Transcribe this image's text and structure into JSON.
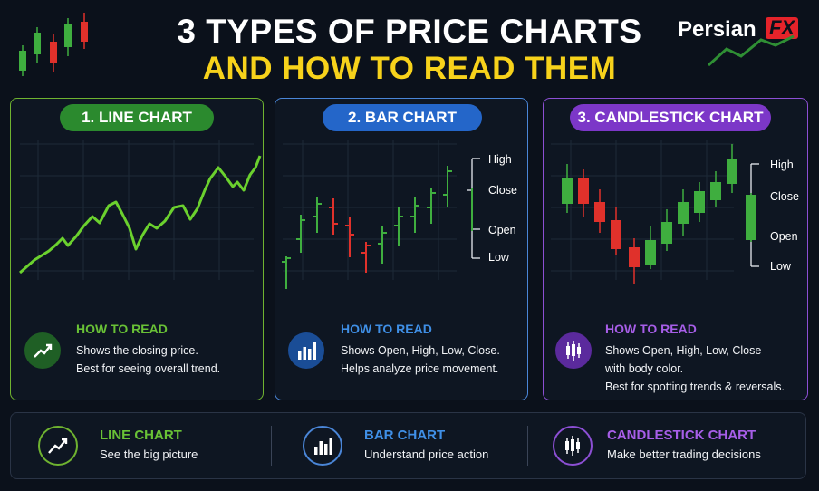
{
  "title": {
    "line1": "3 TYPES OF PRICE CHARTS",
    "line2": "AND HOW TO READ THEM"
  },
  "logo": {
    "text": "Persian",
    "accent": "FX"
  },
  "panels": [
    {
      "label": "1. LINE CHART",
      "how_to_read": "HOW TO READ",
      "description": [
        "Shows the closing price.",
        "Best for seeing overall trend."
      ],
      "accent": "#6fb330",
      "icon": "trend-up-icon"
    },
    {
      "label": "2. BAR CHART",
      "how_to_read": "HOW TO READ",
      "description": [
        "Shows Open, High, Low, Close.",
        "Helps analyze price movement."
      ],
      "accent": "#4a86d8",
      "icon": "bar-chart-icon",
      "legend": {
        "high": "High",
        "close": "Close",
        "open": "Open",
        "low": "Low"
      }
    },
    {
      "label": "3. CANDLESTICK CHART",
      "how_to_read": "HOW TO READ",
      "description": [
        "Shows Open, High, Low, Close",
        "with body color.",
        "Best for spotting trends & reversals."
      ],
      "accent": "#8c4fd4",
      "icon": "candlestick-icon",
      "legend": {
        "high": "High",
        "close": "Close",
        "open": "Open",
        "low": "Low"
      }
    }
  ],
  "bottom": [
    {
      "title": "LINE CHART",
      "subtitle": "See the big picture",
      "color": "#6fb330",
      "icon": "trend-up-icon"
    },
    {
      "title": "BAR CHART",
      "subtitle": "Understand price action",
      "color": "#4a86d8",
      "icon": "bar-chart-icon"
    },
    {
      "title": "CANDLESTICK CHART",
      "subtitle": "Make better trading decisions",
      "color": "#a75ee8",
      "icon": "candlestick-icon"
    }
  ],
  "colors": {
    "up": "#3fae3f",
    "down": "#e0312b",
    "lineChart": "#6bd12e",
    "title2": "#f7d21b"
  }
}
